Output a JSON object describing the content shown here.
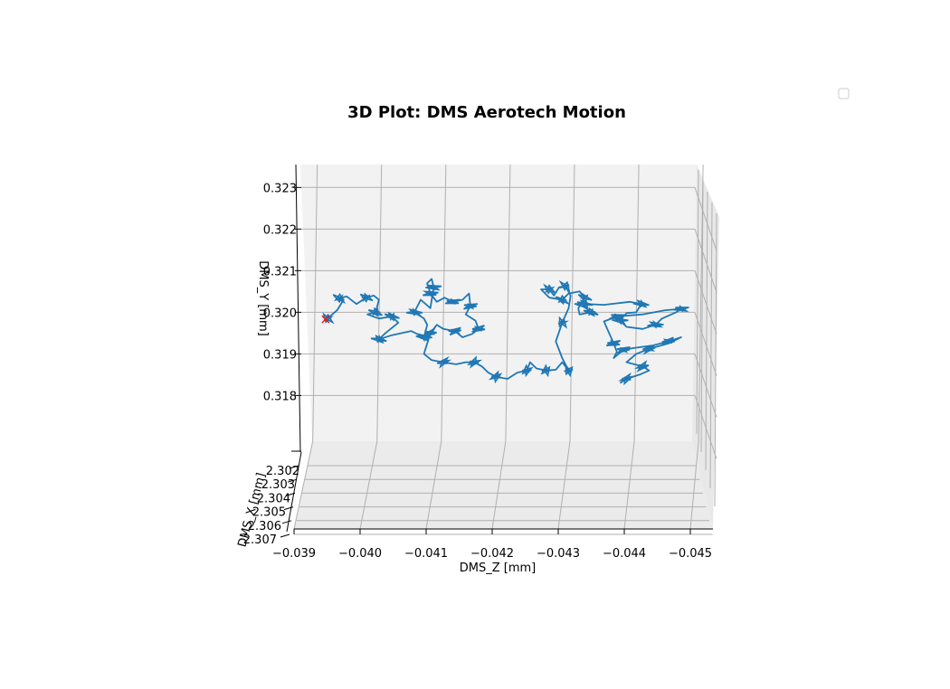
{
  "chart_data": {
    "type": "line",
    "projection": "3d",
    "title": "3D Plot: DMS Aerotech Motion",
    "xlabel": "DMS_Z [mm]",
    "ylabel": "DMS_Y [mm]",
    "zlabel": "DMS_X [mm]",
    "x_ticks": [
      "−0.039",
      "−0.040",
      "−0.041",
      "−0.042",
      "−0.043",
      "−0.044",
      "−0.045"
    ],
    "y_ticks": [
      "0.318",
      "0.319",
      "0.320",
      "0.321",
      "0.322",
      "0.323"
    ],
    "z_ticks": [
      "2.302",
      "2.303",
      "2.304",
      "2.305",
      "2.306",
      "2.307"
    ],
    "xlim": [
      -0.03885,
      -0.04535
    ],
    "ylim": [
      0.3169,
      0.32355
    ],
    "grid": true,
    "legend": "top-right (empty)",
    "series": [
      {
        "color": "#1f77b4",
        "points": [
          [
            -0.0393,
            0.31985
          ],
          [
            -0.03945,
            0.32005
          ],
          [
            -0.03955,
            0.3203
          ],
          [
            -0.03948,
            0.32034
          ],
          [
            -0.0396,
            0.32038
          ],
          [
            -0.03975,
            0.3202
          ],
          [
            -0.0399,
            0.32035
          ],
          [
            -0.04002,
            0.3204
          ],
          [
            -0.0401,
            0.3203
          ],
          [
            -0.04005,
            0.32
          ],
          [
            -0.03992,
            0.31995
          ],
          [
            -0.0401,
            0.31985
          ],
          [
            -0.0403,
            0.3199
          ],
          [
            -0.0404,
            0.31975
          ],
          [
            -0.0402,
            0.3195
          ],
          [
            -0.0401,
            0.31935
          ],
          [
            -0.0403,
            0.31945
          ],
          [
            -0.0406,
            0.31955
          ],
          [
            -0.0408,
            0.3194
          ],
          [
            -0.04085,
            0.3197
          ],
          [
            -0.0408,
            0.31985
          ],
          [
            -0.04065,
            0.32
          ],
          [
            -0.04075,
            0.3203
          ],
          [
            -0.0409,
            0.3201
          ],
          [
            -0.04095,
            0.3206
          ],
          [
            -0.04092,
            0.3208
          ],
          [
            -0.04085,
            0.3207
          ],
          [
            -0.0409,
            0.32045
          ],
          [
            -0.041,
            0.32025
          ],
          [
            -0.04112,
            0.32035
          ],
          [
            -0.04125,
            0.32025
          ],
          [
            -0.0414,
            0.3203
          ],
          [
            -0.0415,
            0.32045
          ],
          [
            -0.04152,
            0.32015
          ],
          [
            -0.04145,
            0.31995
          ],
          [
            -0.0416,
            0.3198
          ],
          [
            -0.04165,
            0.3196
          ],
          [
            -0.04155,
            0.31948
          ],
          [
            -0.0414,
            0.3194
          ],
          [
            -0.04128,
            0.31955
          ],
          [
            -0.0411,
            0.3196
          ],
          [
            -0.041,
            0.3197
          ],
          [
            -0.0409,
            0.3195
          ],
          [
            -0.0408,
            0.319
          ],
          [
            -0.04092,
            0.31885
          ],
          [
            -0.0411,
            0.3188
          ],
          [
            -0.0413,
            0.31875
          ],
          [
            -0.04145,
            0.3188
          ],
          [
            -0.04158,
            0.3188
          ],
          [
            -0.0417,
            0.3187
          ],
          [
            -0.0418,
            0.31855
          ],
          [
            -0.04192,
            0.31845
          ],
          [
            -0.0421,
            0.3184
          ],
          [
            -0.04225,
            0.31855
          ],
          [
            -0.0424,
            0.3186
          ],
          [
            -0.04245,
            0.3188
          ],
          [
            -0.04255,
            0.31865
          ],
          [
            -0.0427,
            0.3186
          ],
          [
            -0.04285,
            0.31862
          ],
          [
            -0.04295,
            0.3188
          ],
          [
            -0.04305,
            0.3186
          ],
          [
            -0.04295,
            0.3189
          ],
          [
            -0.04285,
            0.3193
          ],
          [
            -0.04295,
            0.31975
          ],
          [
            -0.04305,
            0.3201
          ],
          [
            -0.04308,
            0.3204
          ],
          [
            -0.043,
            0.32063
          ],
          [
            -0.0429,
            0.3206
          ],
          [
            -0.04282,
            0.3204
          ],
          [
            -0.04275,
            0.32055
          ],
          [
            -0.04262,
            0.32055
          ],
          [
            -0.04275,
            0.32035
          ],
          [
            -0.04295,
            0.3203
          ],
          [
            -0.04305,
            0.32045
          ],
          [
            -0.04322,
            0.3205
          ],
          [
            -0.0433,
            0.32035
          ],
          [
            -0.0432,
            0.3201
          ],
          [
            -0.04322,
            0.31995
          ],
          [
            -0.0434,
            0.32
          ],
          [
            -0.0433,
            0.32012
          ],
          [
            -0.04315,
            0.3202
          ],
          [
            -0.0433,
            0.3202
          ],
          [
            -0.0436,
            0.32018
          ],
          [
            -0.044,
            0.32025
          ],
          [
            -0.04418,
            0.3202
          ],
          [
            -0.0441,
            0.32
          ],
          [
            -0.04395,
            0.31998
          ],
          [
            -0.04385,
            0.3198
          ],
          [
            -0.04395,
            0.31965
          ],
          [
            -0.0442,
            0.3196
          ],
          [
            -0.0444,
            0.3197
          ],
          [
            -0.0445,
            0.31985
          ],
          [
            -0.04472,
            0.32
          ],
          [
            -0.0448,
            0.32008
          ],
          [
            -0.04455,
            0.32005
          ],
          [
            -0.0442,
            0.31995
          ],
          [
            -0.0438,
            0.3199
          ],
          [
            -0.0436,
            0.31978
          ],
          [
            -0.04365,
            0.3196
          ],
          [
            -0.04375,
            0.31925
          ],
          [
            -0.0438,
            0.31905
          ],
          [
            -0.04375,
            0.3189
          ],
          [
            -0.0439,
            0.3191
          ],
          [
            -0.0441,
            0.31915
          ],
          [
            -0.04435,
            0.3192
          ],
          [
            -0.0446,
            0.3193
          ],
          [
            -0.0448,
            0.3194
          ],
          [
            -0.0446,
            0.31925
          ],
          [
            -0.0443,
            0.31912
          ],
          [
            -0.0441,
            0.319
          ],
          [
            -0.04395,
            0.3188
          ],
          [
            -0.0442,
            0.3187
          ],
          [
            -0.0443,
            0.3186
          ],
          [
            -0.04415,
            0.3185
          ],
          [
            -0.04395,
            0.3184
          ],
          [
            -0.04385,
            0.3183
          ]
        ]
      },
      {
        "marker": "x",
        "color": "#e41a1c",
        "points": [
          [
            -0.03927,
            0.31983
          ]
        ]
      }
    ]
  }
}
